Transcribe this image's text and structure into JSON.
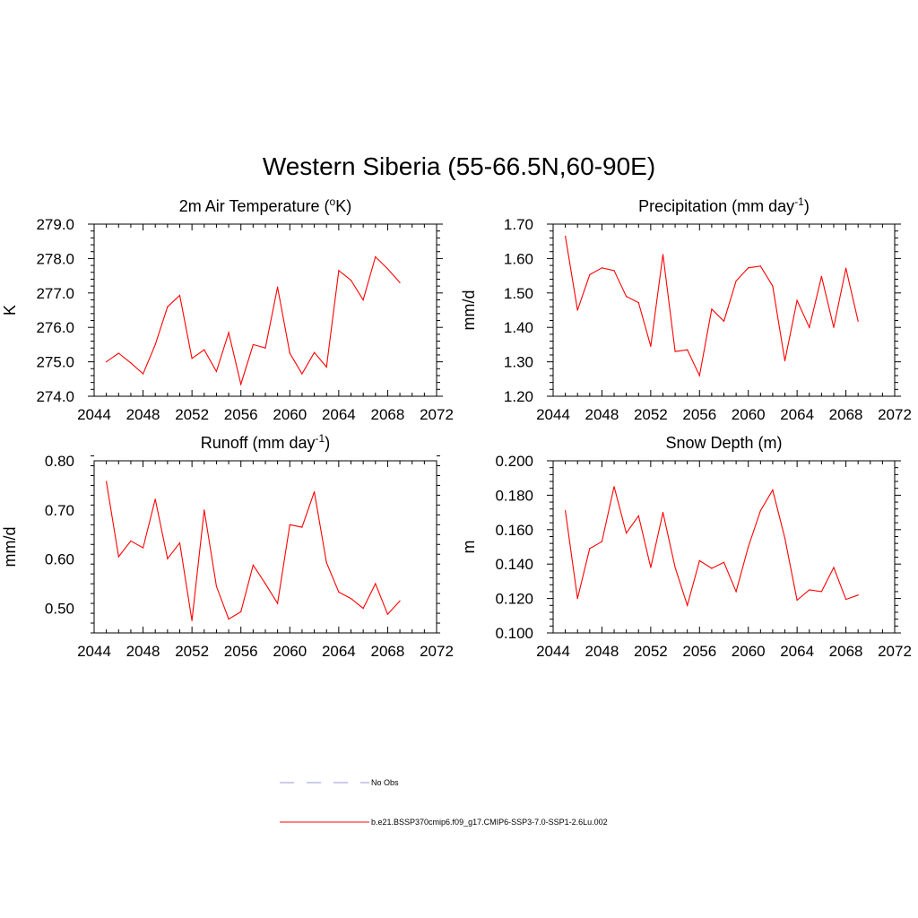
{
  "figure": {
    "title": "Western Siberia (55-66.5N,60-90E)"
  },
  "legend": [
    {
      "label": "No Obs",
      "color": "#9999dd",
      "dash": "dashed"
    },
    {
      "label": "b.e21.BSSP370cmip6.f09_g17.CMIP6-SSP3-7.0-SSP1-2.6Lu.002",
      "color": "#ff0000",
      "dash": "solid"
    }
  ],
  "chart_data": [
    {
      "type": "line",
      "title": "2m Air Temperature (",
      "title_sup": "o",
      "title_tail": "K)",
      "ylabel": "K",
      "xlim": [
        2044,
        2072
      ],
      "xticks": [
        "2044",
        "2048",
        "2052",
        "2056",
        "2060",
        "2064",
        "2068",
        "2072"
      ],
      "ylim": [
        274.0,
        279.0
      ],
      "yticks": [
        "274.0",
        "275.0",
        "276.0",
        "277.0",
        "278.0",
        "279.0"
      ],
      "x": [
        2045,
        2046,
        2047,
        2048,
        2049,
        2050,
        2051,
        2052,
        2053,
        2054,
        2055,
        2056,
        2057,
        2058,
        2059,
        2060,
        2061,
        2062,
        2063,
        2064,
        2065,
        2066,
        2067,
        2068,
        2069
      ],
      "series": [
        {
          "color": "#ff0000",
          "values": [
            275.0,
            275.25,
            274.97,
            274.65,
            275.5,
            276.6,
            276.93,
            275.1,
            275.35,
            274.72,
            275.85,
            274.35,
            275.5,
            275.4,
            277.17,
            275.25,
            274.65,
            275.27,
            274.85,
            277.65,
            277.37,
            276.8,
            278.05,
            277.7,
            277.3
          ]
        }
      ]
    },
    {
      "type": "line",
      "title": "Precipitation (mm day",
      "title_sup": "-1",
      "title_tail": ")",
      "ylabel": "mm/d",
      "xlim": [
        2044,
        2072
      ],
      "xticks": [
        "2044",
        "2048",
        "2052",
        "2056",
        "2060",
        "2064",
        "2068",
        "2072"
      ],
      "ylim": [
        1.2,
        1.7
      ],
      "yticks": [
        "1.20",
        "1.30",
        "1.40",
        "1.50",
        "1.60",
        "1.70"
      ],
      "x": [
        2045,
        2046,
        2047,
        2048,
        2049,
        2050,
        2051,
        2052,
        2053,
        2054,
        2055,
        2056,
        2057,
        2058,
        2059,
        2060,
        2061,
        2062,
        2063,
        2064,
        2065,
        2066,
        2067,
        2068,
        2069
      ],
      "series": [
        {
          "color": "#ff0000",
          "values": [
            1.665,
            1.45,
            1.553,
            1.573,
            1.565,
            1.49,
            1.472,
            1.345,
            1.612,
            1.33,
            1.335,
            1.26,
            1.453,
            1.418,
            1.535,
            1.573,
            1.578,
            1.52,
            1.303,
            1.478,
            1.4,
            1.548,
            1.4,
            1.572,
            1.418
          ]
        }
      ]
    },
    {
      "type": "line",
      "title": "Runoff (mm day",
      "title_sup": "-1",
      "title_tail": ")",
      "ylabel": "mm/d",
      "xlim": [
        2044,
        2072
      ],
      "xticks": [
        "2044",
        "2048",
        "2052",
        "2056",
        "2060",
        "2064",
        "2068",
        "2072"
      ],
      "ylim": [
        0.45,
        0.8
      ],
      "yticks": [
        "0.50",
        "0.60",
        "0.70",
        "0.80"
      ],
      "ytick_values": [
        0.5,
        0.6,
        0.7,
        0.8
      ],
      "x": [
        2045,
        2046,
        2047,
        2048,
        2049,
        2050,
        2051,
        2052,
        2053,
        2054,
        2055,
        2056,
        2057,
        2058,
        2059,
        2060,
        2061,
        2062,
        2063,
        2064,
        2065,
        2066,
        2067,
        2068,
        2069
      ],
      "series": [
        {
          "color": "#ff0000",
          "values": [
            0.758,
            0.605,
            0.637,
            0.623,
            0.722,
            0.601,
            0.633,
            0.475,
            0.7,
            0.545,
            0.478,
            0.493,
            0.588,
            0.55,
            0.51,
            0.67,
            0.665,
            0.737,
            0.593,
            0.533,
            0.52,
            0.5,
            0.55,
            0.488,
            0.515
          ]
        }
      ]
    },
    {
      "type": "line",
      "title": "Snow Depth (m)",
      "title_sup": "",
      "title_tail": "",
      "ylabel": "m",
      "xlim": [
        2044,
        2072
      ],
      "xticks": [
        "2044",
        "2048",
        "2052",
        "2056",
        "2060",
        "2064",
        "2068",
        "2072"
      ],
      "ylim": [
        0.1,
        0.2
      ],
      "yticks": [
        "0.100",
        "0.120",
        "0.140",
        "0.160",
        "0.180",
        "0.200"
      ],
      "x": [
        2045,
        2046,
        2047,
        2048,
        2049,
        2050,
        2051,
        2052,
        2053,
        2054,
        2055,
        2056,
        2057,
        2058,
        2059,
        2060,
        2061,
        2062,
        2063,
        2064,
        2065,
        2066,
        2067,
        2068,
        2069
      ],
      "series": [
        {
          "color": "#ff0000",
          "values": [
            0.171,
            0.12,
            0.149,
            0.153,
            0.185,
            0.158,
            0.168,
            0.138,
            0.17,
            0.138,
            0.116,
            0.142,
            0.1375,
            0.141,
            0.124,
            0.15,
            0.171,
            0.183,
            0.155,
            0.119,
            0.125,
            0.124,
            0.138,
            0.1195,
            0.122
          ]
        }
      ]
    }
  ]
}
